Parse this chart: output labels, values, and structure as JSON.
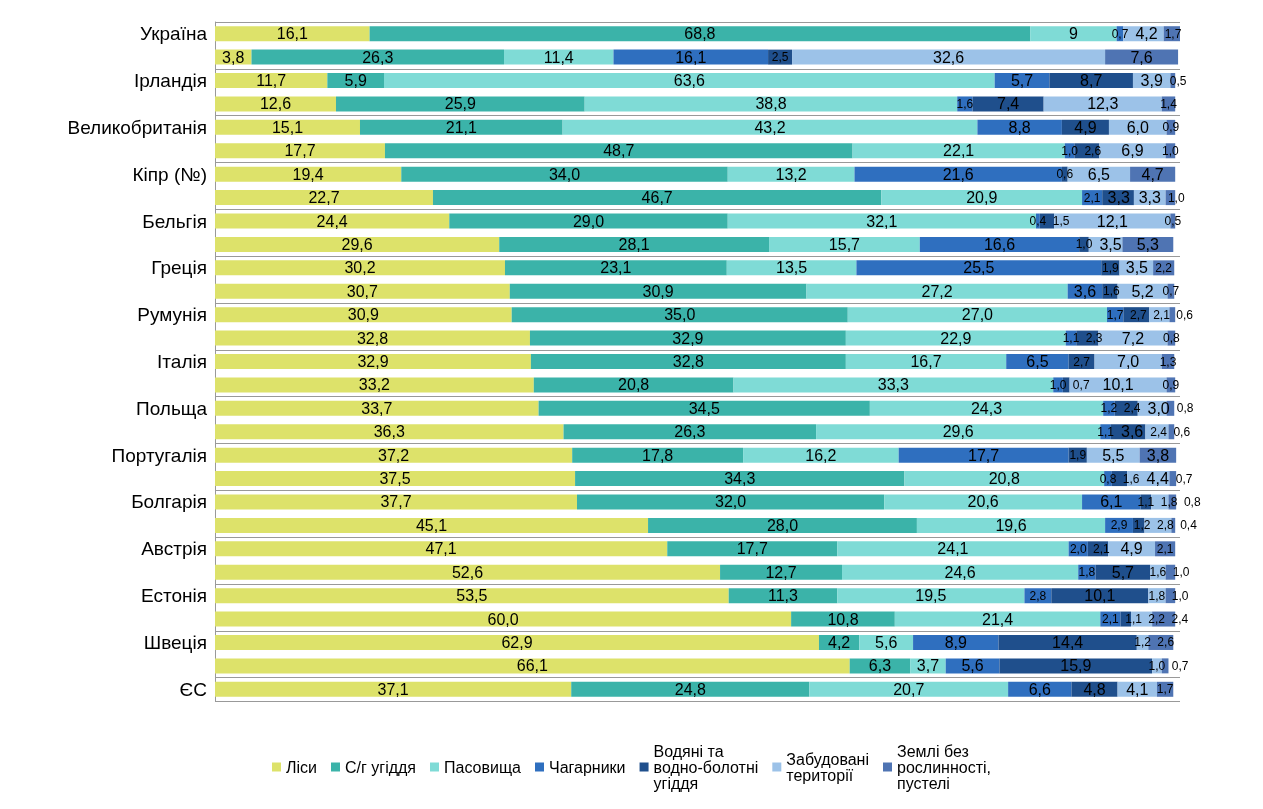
{
  "chart_data": {
    "type": "bar",
    "orientation": "horizontal",
    "stacked": true,
    "grid": "y",
    "legend": "bottom",
    "categories": [
      "Україна",
      null,
      "Ірландія",
      null,
      "Великобританія",
      null,
      "Кіпр (№)",
      null,
      "Бельгія",
      null,
      "Греція",
      null,
      "Румунія",
      null,
      "Італія",
      null,
      "Польща",
      null,
      "Португалія",
      null,
      "Болгарія",
      null,
      "Австрія",
      null,
      "Естонія",
      null,
      "Швеція",
      null,
      "ЄС"
    ],
    "series": [
      {
        "name": "Ліси",
        "color": "#dde26a",
        "values": [
          16.1,
          3.8,
          11.7,
          12.6,
          15.1,
          17.7,
          19.4,
          22.7,
          24.4,
          29.6,
          30.2,
          30.7,
          30.9,
          32.8,
          32.9,
          33.2,
          33.7,
          36.3,
          37.2,
          37.5,
          37.7,
          45.1,
          47.1,
          52.6,
          53.5,
          60.0,
          62.9,
          66.1,
          37.1
        ],
        "value_labels": [
          "16,1",
          "3,8",
          "11,7",
          "12,6",
          "15,1",
          "17,7",
          "19,4",
          "22,7",
          "24,4",
          "29,6",
          "30,2",
          "30,7",
          "30,9",
          "32,8",
          "32,9",
          "33,2",
          "33,7",
          "36,3",
          "37,2",
          "37,5",
          "37,7",
          "45,1",
          "47,1",
          "52,6",
          "53,5",
          "60,0",
          "62,9",
          "66,1",
          "37,1"
        ]
      },
      {
        "name": "С/г угіддя",
        "color": "#3bb3a9",
        "values": [
          68.8,
          26.3,
          5.9,
          25.9,
          21.1,
          48.7,
          34.0,
          46.7,
          29.0,
          28.1,
          23.1,
          30.9,
          35.0,
          32.9,
          32.8,
          20.8,
          34.5,
          26.3,
          17.8,
          34.3,
          32.0,
          28.0,
          17.7,
          12.7,
          11.3,
          10.8,
          4.2,
          6.3,
          24.8
        ],
        "value_labels": [
          "68,8",
          "26,3",
          "5,9",
          "25,9",
          "21,1",
          "48,7",
          "34,0",
          "46,7",
          "29,0",
          "28,1",
          "23,1",
          "30,9",
          "35,0",
          "32,9",
          "32,8",
          "20,8",
          "34,5",
          "26,3",
          "17,8",
          "34,3",
          "32,0",
          "28,0",
          "17,7",
          "12,7",
          "11,3",
          "10,8",
          "4,2",
          "6,3",
          "24,8"
        ]
      },
      {
        "name": "Пасовища",
        "color": "#7fdbd6",
        "values": [
          9,
          11.4,
          63.6,
          38.8,
          43.2,
          22.1,
          13.2,
          20.9,
          32.1,
          15.7,
          13.5,
          27.2,
          27.0,
          22.9,
          16.7,
          33.3,
          24.3,
          29.6,
          16.2,
          20.8,
          20.6,
          19.6,
          24.1,
          24.6,
          19.5,
          21.4,
          5.6,
          3.7,
          20.7
        ],
        "value_labels": [
          "9",
          "11,4",
          "63,6",
          "38,8",
          "43,2",
          "22,1",
          "13,2",
          "20,9",
          "32,1",
          "15,7",
          "13,5",
          "27,2",
          "27,0",
          "22,9",
          "16,7",
          "33,3",
          "24,3",
          "29,6",
          "16,2",
          "20,8",
          "20,6",
          "19,6",
          "24,1",
          "24,6",
          "19,5",
          "21,4",
          "5,6",
          "3,7",
          "20,7"
        ]
      },
      {
        "name": "Чагарники",
        "color": "#2f6fbf",
        "values": [
          0.7,
          16.1,
          5.7,
          1.6,
          8.8,
          1.0,
          21.6,
          2.1,
          0.4,
          16.6,
          25.5,
          3.6,
          1.7,
          1.1,
          6.5,
          1.0,
          1.2,
          1.1,
          17.7,
          0.8,
          6.1,
          2.9,
          2.0,
          1.8,
          2.8,
          2.1,
          8.9,
          5.6,
          6.6
        ],
        "value_labels": [
          "0,7",
          "16,1",
          "5,7",
          "1,6",
          "8,8",
          "1,0",
          "21,6",
          "2,1",
          "0,4",
          "16,6",
          "25,5",
          "3,6",
          "1,7",
          "1,1",
          "6,5",
          "1,0",
          "1,2",
          "1,1",
          "17,7",
          "0,8",
          "6,1",
          "2,9",
          "2,0",
          "1,8",
          "2,8",
          "2,1",
          "8,9",
          "5,6",
          "6,6"
        ]
      },
      {
        "name": "Водяні та водно-болотні угіддя",
        "color": "#1f4f8c",
        "values": [
          null,
          2.5,
          8.7,
          7.4,
          4.9,
          2.6,
          0.6,
          3.3,
          1.5,
          1.0,
          1.9,
          1.6,
          2.7,
          2.3,
          2.7,
          0.7,
          2.4,
          3.6,
          1.9,
          1.6,
          1.1,
          1.2,
          2.1,
          5.7,
          10.1,
          1.1,
          14.4,
          15.9,
          4.8
        ],
        "value_labels": [
          null,
          "2,5",
          "8,7",
          "7,4",
          "4,9",
          "2,6",
          "0,6",
          "3,3",
          "1,5",
          "1,0",
          "1,9",
          "1,6",
          "2,7",
          "2,3",
          "2,7",
          "0,7",
          "2,4",
          "3,6",
          "1,9",
          "1,6",
          "1,1",
          "1,2",
          "2,1",
          "5,7",
          "10,1",
          "1,1",
          "14,4",
          "15,9",
          "4,8"
        ]
      },
      {
        "name": "Забудовані території",
        "color": "#9cc2e8",
        "values": [
          4.2,
          32.6,
          3.9,
          12.3,
          6.0,
          6.9,
          6.5,
          3.3,
          12.1,
          3.5,
          3.5,
          5.2,
          2.1,
          7.2,
          7.0,
          10.1,
          3.0,
          2.4,
          5.5,
          4.4,
          1.8,
          2.8,
          4.9,
          1.6,
          1.8,
          2.2,
          1.2,
          1.0,
          4.1
        ],
        "value_labels": [
          "4,2",
          "32,6",
          "3,9",
          "12,3",
          "6,0",
          "6,9",
          "6,5",
          "3,3",
          "12,1",
          "3,5",
          "3,5",
          "5,2",
          "2,1",
          "7,2",
          "7,0",
          "10,1",
          "3,0",
          "2,4",
          "5,5",
          "4,4",
          "1,8",
          "2,8",
          "4,9",
          "1,6",
          "1,8",
          "2,2",
          "1,2",
          "1,0",
          "4,1"
        ]
      },
      {
        "name": "Землі без рослинності, пустелі",
        "color": "#4f74b3",
        "values": [
          1.7,
          7.6,
          0.5,
          1.4,
          0.9,
          1.0,
          4.7,
          1.0,
          0.5,
          5.3,
          2.2,
          0.7,
          0.6,
          0.8,
          1.3,
          0.9,
          0.8,
          0.6,
          3.8,
          0.7,
          0.8,
          0.4,
          2.1,
          1.0,
          1.0,
          2.4,
          2.6,
          0.7,
          1.7
        ],
        "value_labels": [
          "1,7",
          "7,6",
          "0,5",
          "1,4",
          "0,9",
          "1,0",
          "4,7",
          "1,0",
          "0,5",
          "5,3",
          "2,2",
          "0,7",
          "0,6",
          "0,8",
          "1,3",
          "0,9",
          "0,8",
          "0,6",
          "3,8",
          "0,7",
          "0,8",
          "0,4",
          "2,1",
          "1,0",
          "1,0",
          "2,4",
          "2,6",
          "0,7",
          "1,7"
        ]
      }
    ]
  }
}
